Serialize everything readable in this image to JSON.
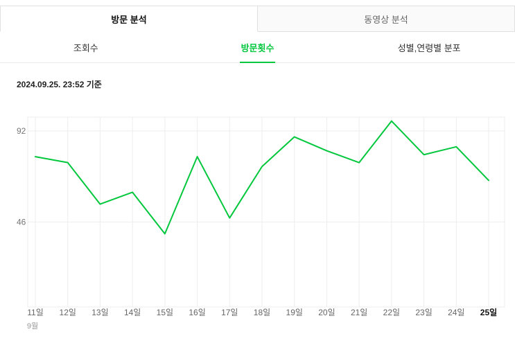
{
  "tabs": [
    {
      "label": "방문 분석",
      "active": true
    },
    {
      "label": "동영상 분석",
      "active": false
    }
  ],
  "subtabs": [
    {
      "label": "조회수",
      "active": false
    },
    {
      "label": "방문횟수",
      "active": true
    },
    {
      "label": "성별,연령별 분포",
      "active": false
    }
  ],
  "timestamp": "2024.09.25. 23:52 기준",
  "colors": {
    "accent": "#00c73c",
    "grid": "#ededed",
    "axis_text": "#666666",
    "ytick_text": "#757575",
    "month_text": "#999999",
    "last_tick_text": "#111111"
  },
  "chart_data": {
    "type": "line",
    "title": "",
    "xlabel": "",
    "ylabel": "",
    "categories": [
      "11일",
      "12일",
      "13일",
      "14일",
      "15일",
      "16일",
      "17일",
      "18일",
      "19일",
      "20일",
      "21일",
      "22일",
      "23일",
      "24일",
      "25일"
    ],
    "values": [
      79,
      76,
      55,
      61,
      40,
      79,
      48,
      74,
      89,
      82,
      76,
      97,
      80,
      84,
      67
    ],
    "yticks": [
      46,
      92
    ],
    "ylim": [
      3,
      99
    ],
    "x_group_label": "9월",
    "line_color": "#00c73c",
    "grid": true,
    "legend": "none"
  }
}
